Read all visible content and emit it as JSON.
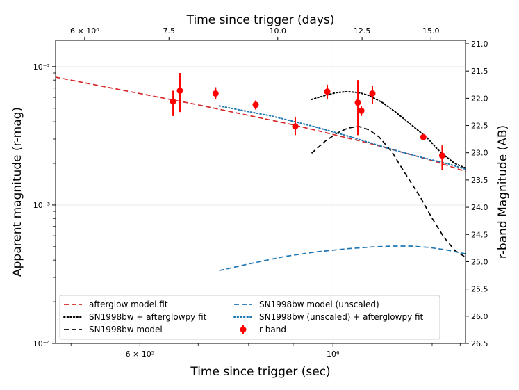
{
  "chart_data": {
    "type": "scatter",
    "title": "",
    "xlabel": "Time since trigger (sec)",
    "ylabel": "Apparent magnitude (r-mag)",
    "top_xlabel": "Time since trigger (days)",
    "right_ylabel": "r-band Magnitude (AB)",
    "x_scale": "log",
    "y_scale": "log",
    "xlim": [
      480000,
      1420000
    ],
    "ylim": [
      0.0001,
      0.0155
    ],
    "right_ylim_mag": [
      21.0,
      26.5
    ],
    "grid": true,
    "legend_position": "lower-center",
    "x_ticks": [
      {
        "value": 600000,
        "label": "6 × 10⁵"
      },
      {
        "value": 1000000,
        "label": "10⁶"
      }
    ],
    "y_ticks": [
      {
        "value": 0.0001,
        "label": "10⁻⁴"
      },
      {
        "value": 0.001,
        "label": "10⁻³"
      },
      {
        "value": 0.01,
        "label": "10⁻²"
      }
    ],
    "top_ticks": [
      {
        "days": 6,
        "label": "6 × 10⁰"
      },
      {
        "days": 7.5,
        "label": "7.5"
      },
      {
        "days": 10,
        "label": "10.0"
      },
      {
        "days": 12.5,
        "label": "12.5"
      },
      {
        "days": 15,
        "label": "15.0"
      }
    ],
    "right_ticks": [
      "21.0",
      "21.5",
      "22.0",
      "22.5",
      "23.0",
      "23.5",
      "24.0",
      "24.5",
      "25.0",
      "25.5",
      "26.0",
      "26.5"
    ],
    "points": {
      "name": "r band",
      "color": "#ff0000",
      "data": [
        {
          "x": 655000,
          "y": 0.0056,
          "ylo": 0.0044,
          "yhi": 0.0067
        },
        {
          "x": 667000,
          "y": 0.0067,
          "ylo": 0.0047,
          "yhi": 0.009
        },
        {
          "x": 733000,
          "y": 0.0064,
          "ylo": 0.0058,
          "yhi": 0.0071
        },
        {
          "x": 815000,
          "y": 0.0053,
          "ylo": 0.0049,
          "yhi": 0.0057
        },
        {
          "x": 905000,
          "y": 0.0037,
          "ylo": 0.0032,
          "yhi": 0.0043
        },
        {
          "x": 985000,
          "y": 0.0066,
          "ylo": 0.0058,
          "yhi": 0.0074
        },
        {
          "x": 1068000,
          "y": 0.0055,
          "ylo": 0.0032,
          "yhi": 0.008
        },
        {
          "x": 1078000,
          "y": 0.0048,
          "ylo": 0.0044,
          "yhi": 0.0052
        },
        {
          "x": 1110000,
          "y": 0.0064,
          "ylo": 0.0054,
          "yhi": 0.0073
        },
        {
          "x": 1270000,
          "y": 0.0031,
          "ylo": 0.003,
          "yhi": 0.0032
        },
        {
          "x": 1335000,
          "y": 0.00228,
          "ylo": 0.0018,
          "yhi": 0.0027
        }
      ]
    },
    "series": [
      {
        "name": "afterglow model fit",
        "color": "#d62728",
        "style": "dashed",
        "x": [
          480000,
          700000,
          900000,
          1100000,
          1300000,
          1420000
        ],
        "y": [
          0.0084,
          0.0053,
          0.0038,
          0.0028,
          0.0021,
          0.00175
        ]
      },
      {
        "name": "SN1998bw + afterglowpy fit",
        "color": "#000000",
        "style": "dotted",
        "x": [
          945000,
          980000,
          1010000,
          1040000,
          1070000,
          1100000,
          1140000,
          1180000,
          1230000,
          1280000,
          1330000,
          1380000,
          1420000
        ],
        "y": [
          0.0058,
          0.0062,
          0.0065,
          0.0066,
          0.0065,
          0.0062,
          0.0055,
          0.0047,
          0.0038,
          0.0031,
          0.0024,
          0.002,
          0.00185
        ]
      },
      {
        "name": "SN1998bw model",
        "color": "#000000",
        "style": "dashed",
        "x": [
          945000,
          980000,
          1010000,
          1040000,
          1070000,
          1100000,
          1130000,
          1170000,
          1210000,
          1260000,
          1300000,
          1340000,
          1380000,
          1420000
        ],
        "y": [
          0.00237,
          0.0029,
          0.0033,
          0.0036,
          0.0037,
          0.0035,
          0.0031,
          0.0024,
          0.0017,
          0.00114,
          0.0008,
          0.00059,
          0.00047,
          0.00042
        ]
      },
      {
        "name": "SN1998bw model (unscaled)",
        "color": "#1f77b4",
        "style": "dashed",
        "x": [
          740000,
          800000,
          880000,
          960000,
          1040000,
          1110000,
          1170000,
          1230000,
          1290000,
          1350000,
          1420000
        ],
        "y": [
          0.000336,
          0.000375,
          0.000425,
          0.00046,
          0.000484,
          0.000498,
          0.000505,
          0.000505,
          0.000494,
          0.000474,
          0.000444
        ]
      },
      {
        "name": "SN1998bw (unscaled) + afterglowpy fit",
        "color": "#1f77b4",
        "style": "dotted",
        "x": [
          740000,
          850000,
          950000,
          1050000,
          1150000,
          1250000,
          1350000,
          1420000
        ],
        "y": [
          0.0052,
          0.0044,
          0.0037,
          0.0031,
          0.0026,
          0.00225,
          0.002,
          0.00182
        ]
      }
    ]
  }
}
